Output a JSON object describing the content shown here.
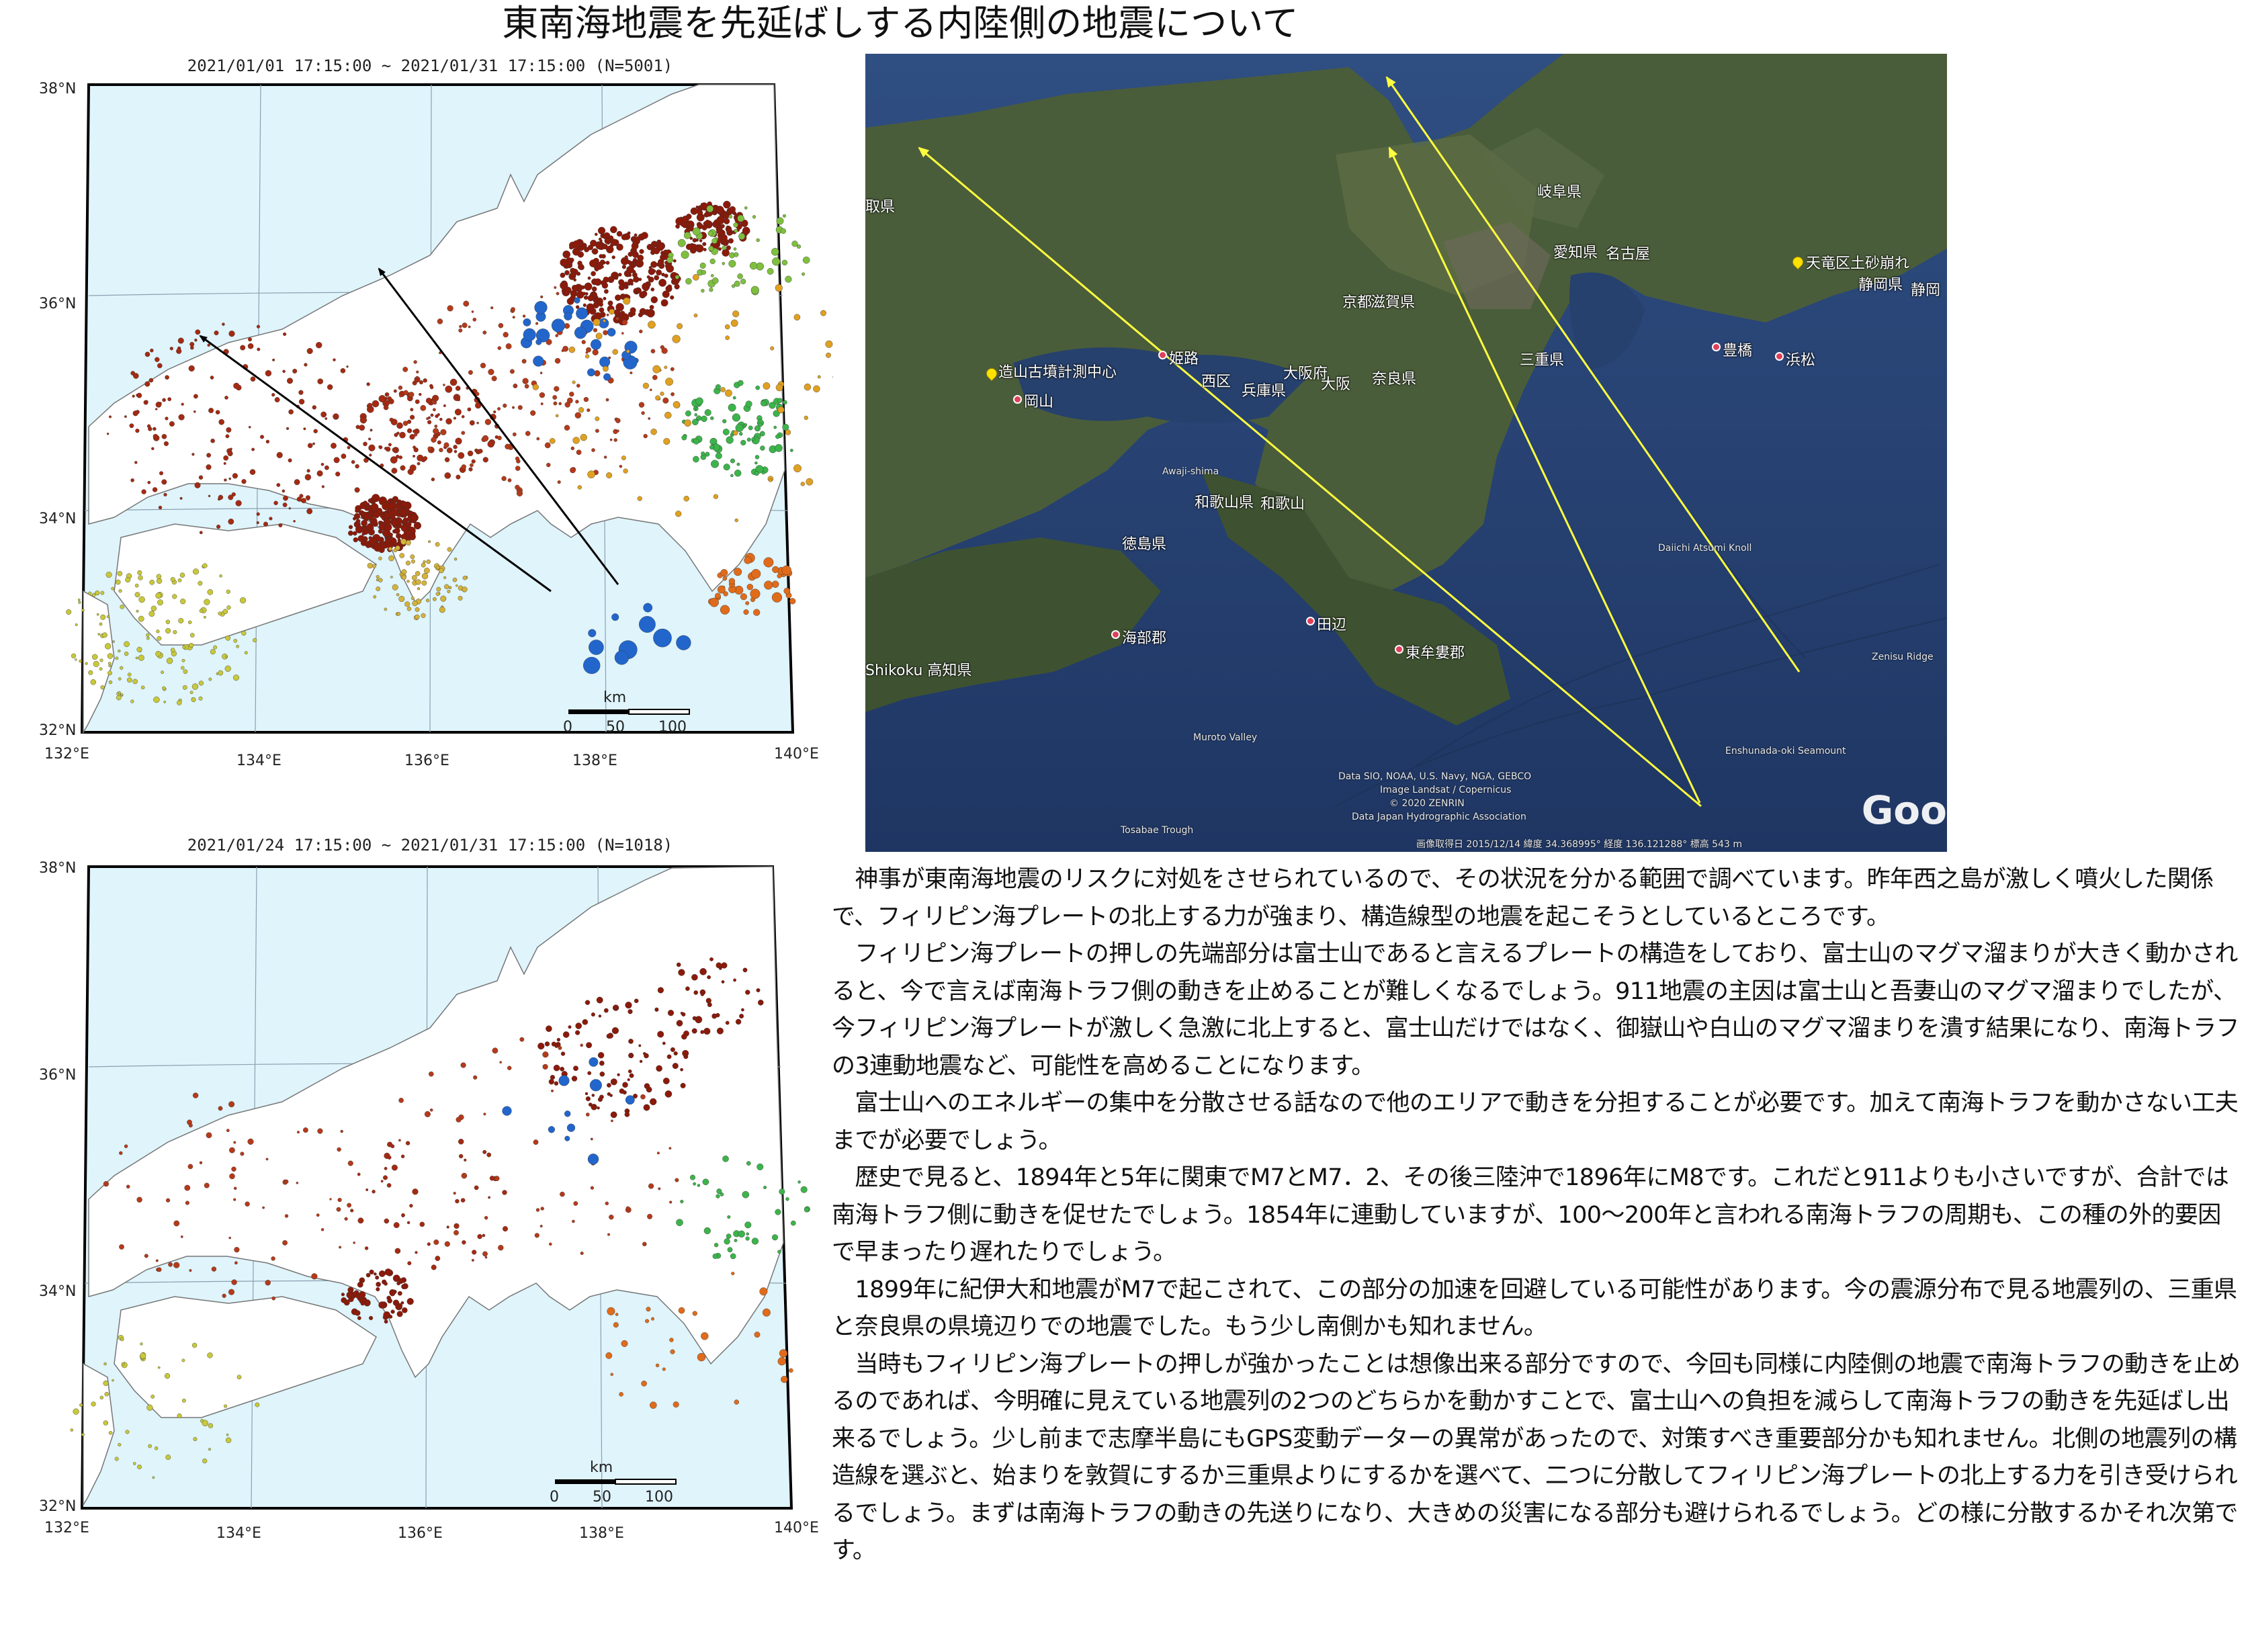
{
  "title": "東南海地震を先延ばしする内陸側の地震について",
  "maps": [
    {
      "caption": "2021/01/01 17:15:00 ~ 2021/01/31 17:15:00 (N=5001)",
      "lat_labels": [
        "38°N",
        "36°N",
        "34°N",
        "32°N"
      ],
      "lon_labels": [
        "132°E",
        "134°E",
        "136°E",
        "138°E",
        "140°E"
      ],
      "scale": {
        "unit": "km",
        "ticks": [
          "0",
          "50",
          "100"
        ]
      },
      "arrows": 2
    },
    {
      "caption": "2021/01/24 17:15:00 ~ 2021/01/31 17:15:00 (N=1018)",
      "lat_labels": [
        "38°N",
        "36°N",
        "34°N",
        "32°N"
      ],
      "lon_labels": [
        "132°E",
        "134°E",
        "136°E",
        "138°E",
        "140°E"
      ],
      "scale": {
        "unit": "km",
        "ticks": [
          "0",
          "50",
          "100"
        ]
      },
      "arrows": 0
    }
  ],
  "satellite": {
    "labels": {
      "gifu": "岐阜県",
      "aichi": "愛知県",
      "nagoya": "名古屋",
      "tenryu": "天竜区土砂崩れ",
      "shizuoka_ken": "静岡県",
      "shizuoka": "静岡",
      "kyoto": "京都",
      "shiga": "滋賀県",
      "mie": "三重県",
      "toyohashi": "豊橋",
      "hamamatsu": "浜松",
      "zoyama": "造山古墳計測中心",
      "okayama": "岡山",
      "himeji": "姫路",
      "nishiku": "西区",
      "hyogo": "兵庫県",
      "osakafu": "大阪府",
      "osaka": "大阪",
      "nara": "奈良県",
      "tottori": "取県",
      "awaji": "Awaji-shima",
      "wakayama_ken": "和歌山県",
      "wakayama": "和歌山",
      "tokushima": "徳島県",
      "tanabe": "田辺",
      "kaifu": "海部郡",
      "higashimuro": "東牟婁郡",
      "kochi": "Shikoku 高知県",
      "daiichi": "Daiichi Atsumi Knoll",
      "zenisu": "Zenisu Ridge",
      "enshunada": "Enshunada-oki Seamount",
      "muroto": "Muroto Valley",
      "tosabae": "Tosabae Trough",
      "attribution": [
        "Data SIO, NOAA, U.S. Navy, NGA, GEBCO",
        "Image Landsat / Copernicus",
        "© 2020 ZENRIN",
        "Data Japan Hydrographic Association"
      ],
      "footer": "画像取得日 2015/12/14   緯度 34.368995°   経度 136.121288°   標高 543 m",
      "google": "Goo"
    }
  },
  "paragraphs": [
    "　神事が東南海地震のリスクに対処をさせられているので、その状況を分かる範囲で調べています。昨年西之島が激しく噴火した関係で、フィリピン海プレートの北上する力が強まり、構造線型の地震を起こそうとしているところです。",
    "　フィリピン海プレートの押しの先端部分は富士山であると言えるプレートの構造をしており、富士山のマグマ溜まりが大きく動かされると、今で言えば南海トラフ側の動きを止めることが難しくなるでしょう。911地震の主因は富士山と吾妻山のマグマ溜まりでしたが、今フィリピン海プレートが激しく急激に北上すると、富士山だけではなく、御嶽山や白山のマグマ溜まりを潰す結果になり、南海トラフの3連動地震など、可能性を高めることになります。",
    "　富士山へのエネルギーの集中を分散させる話なので他のエリアで動きを分担することが必要です。加えて南海トラフを動かさない工夫までが必要でしょう。",
    "　歴史で見ると、1894年と5年に関東でM7とM7．2、その後三陸沖で1896年にM8です。これだと911よりも小さいですが、合計では南海トラフ側に動きを促せたでしょう。1854年に連動していますが、100〜200年と言われる南海トラフの周期も、この種の外的要因で早まったり遅れたりでしょう。",
    "　1899年に紀伊大和地震がM7で起こされて、この部分の加速を回避している可能性があります。今の震源分布で見る地震列の、三重県と奈良県の県境辺りでの地震でした。もう少し南側かも知れません。",
    "　当時もフィリピン海プレートの押しが強かったことは想像出来る部分ですので、今回も同様に内陸側の地震で南海トラフの動きを止めるのであれば、今明確に見えている地震列の2つのどちらかを動かすことで、富士山への負担を減らして南海トラフの動きを先延ばし出来るでしょう。少し前まで志摩半島にもGPS変動データーの異常があったので、対策すべき重要部分かも知れません。北側の地震列の構造線を選ぶと、始まりを敦賀にするか三重県よりにするかを選べて、二つに分散してフィリピン海プレートの北上する力を引き受けられるでしょう。まずは南海トラフの動きの先送りになり、大きめの災害になる部分も避けられるでしょう。どの様に分散するかそれ次第です。"
  ]
}
